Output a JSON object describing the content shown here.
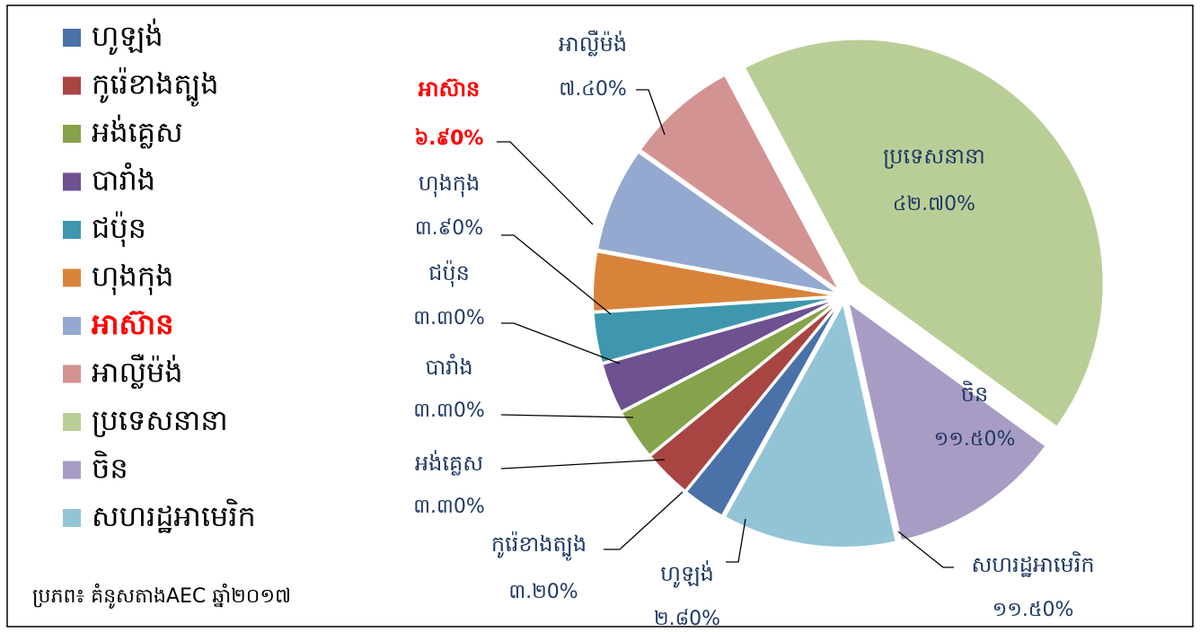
{
  "chart_data": {
    "type": "pie",
    "categories": [
      "ហូឡង់",
      "កូរ៉េខាងត្បូង",
      "អង់គ្លេស",
      "បារាំង",
      "ជប៉ុន",
      "ហុងកុង",
      "អាស៊ាន",
      "អាល្លឺម៉ង់",
      "ប្រទេសនានា",
      "ចិន",
      "សហរដ្ឋអាមេរិក"
    ],
    "values": [
      2.8,
      3.2,
      3.3,
      3.3,
      3.3,
      3.9,
      6.9,
      7.4,
      42.7,
      11.5,
      11.5
    ],
    "value_labels": [
      "២.៨0%",
      "៣.២0%",
      "៣.៣0%",
      "៣.៣0%",
      "៣.៣0%",
      "៣.៩0%",
      "៦.៩0%",
      "៧.៤0%",
      "៤២.៧0%",
      "១១.៥0%",
      "១១.៥0%"
    ],
    "colors": [
      "#4a72a8",
      "#a84442",
      "#86a24a",
      "#6d5190",
      "#3e97ae",
      "#d8833a",
      "#93a9d0",
      "#d39393",
      "#b9ce96",
      "#a89cc4",
      "#93c4d6"
    ],
    "highlight": {
      "index": 6,
      "color": "#ff0000"
    },
    "legend": "left",
    "source": "ប្រភព៖ គំនូសតាងAEC ឆ្នាំ២០១៧"
  }
}
